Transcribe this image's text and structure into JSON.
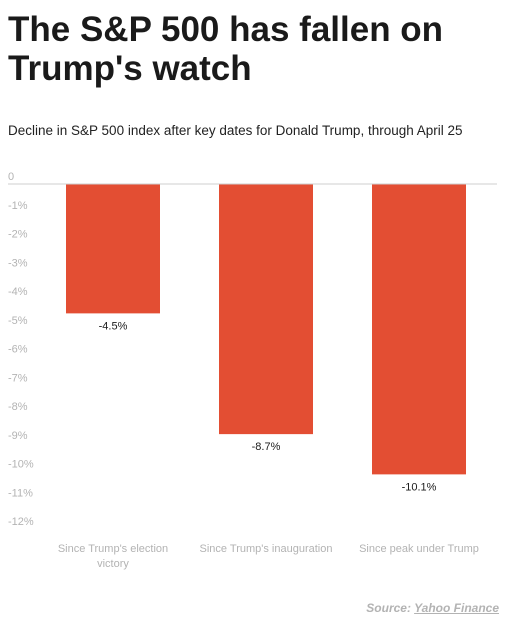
{
  "header": {
    "title": "The S&P 500 has fallen on Trump's watch",
    "subtitle": "Decline in S&P 500 index after key dates for Donald Trump, through April 25"
  },
  "source": {
    "prefix": "Source:",
    "name": "Yahoo Finance"
  },
  "colors": {
    "bar": "#e34e33",
    "axis_text": "#b3b3b3",
    "zero_line": "#cfcfcf"
  },
  "chart_data": {
    "type": "bar",
    "title": "The S&P 500 has fallen on Trump's watch",
    "subtitle": "Decline in S&P 500 index after key dates for Donald Trump, through April 25",
    "categories": [
      [
        "Since Trump's election",
        "victory"
      ],
      [
        "Since Trump's inauguration"
      ],
      [
        "Since peak under Trump"
      ]
    ],
    "values": [
      -4.5,
      -8.7,
      -10.1
    ],
    "data_labels": [
      "-4.5%",
      "-8.7%",
      "-10.1%"
    ],
    "ylim": [
      -12,
      0
    ],
    "yticks": [
      0,
      -1,
      -2,
      -3,
      -4,
      -5,
      -6,
      -7,
      -8,
      -9,
      -10,
      -11,
      -12
    ],
    "ytick_labels": [
      "0",
      "-1%",
      "-2%",
      "-3%",
      "-4%",
      "-5%",
      "-6%",
      "-7%",
      "-8%",
      "-9%",
      "-10%",
      "-11%",
      "-12%"
    ],
    "grid": false,
    "legend": "none"
  }
}
